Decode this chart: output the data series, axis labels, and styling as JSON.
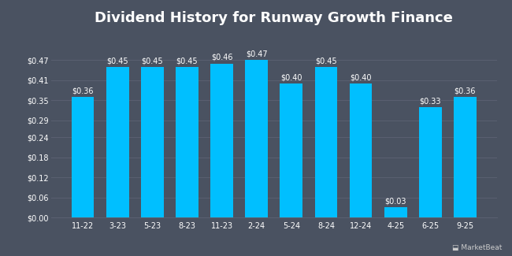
{
  "title": "Dividend History for Runway Growth Finance",
  "categories": [
    "11-22",
    "3-23",
    "5-23",
    "8-23",
    "11-23",
    "2-24",
    "5-24",
    "8-24",
    "12-24",
    "4-25",
    "6-25",
    "9-25"
  ],
  "values": [
    0.36,
    0.45,
    0.45,
    0.45,
    0.46,
    0.47,
    0.4,
    0.45,
    0.4,
    0.03,
    0.33,
    0.36
  ],
  "bar_color": "#00bfff",
  "background_color": "#4a5261",
  "grid_color": "#5a6071",
  "text_color": "#ffffff",
  "title_fontsize": 13,
  "label_fontsize": 7,
  "tick_fontsize": 7,
  "ylim": [
    0,
    0.55
  ],
  "yticks": [
    0.0,
    0.06,
    0.12,
    0.18,
    0.24,
    0.29,
    0.35,
    0.41,
    0.47
  ],
  "bar_width": 0.65
}
